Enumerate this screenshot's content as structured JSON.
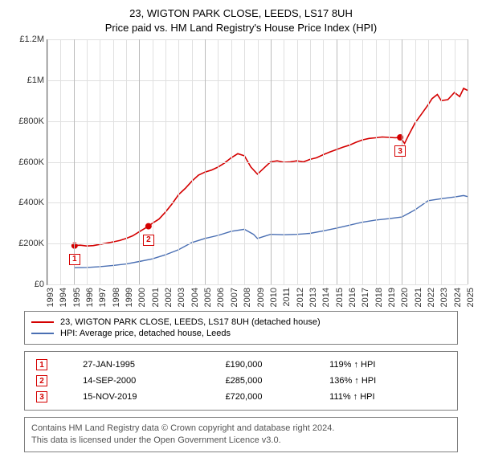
{
  "title": {
    "line1": "23, WIGTON PARK CLOSE, LEEDS, LS17 8UH",
    "line2": "Price paid vs. HM Land Registry's House Price Index (HPI)",
    "fontsize": 13
  },
  "chart": {
    "type": "line",
    "background_color": "#ffffff",
    "grid_color": "#e0e0e0",
    "grid_major_color": "#bbbbbb",
    "x": {
      "min": 1993,
      "max": 2025,
      "tick_step": 1,
      "major_step": 5,
      "labels": [
        "1993",
        "1994",
        "1995",
        "1996",
        "1997",
        "1998",
        "1999",
        "2000",
        "2001",
        "2002",
        "2003",
        "2004",
        "2005",
        "2006",
        "2007",
        "2008",
        "2009",
        "2010",
        "2011",
        "2012",
        "2013",
        "2014",
        "2015",
        "2016",
        "2017",
        "2018",
        "2019",
        "2020",
        "2021",
        "2022",
        "2023",
        "2024",
        "2025"
      ],
      "label_fontsize": 11
    },
    "y": {
      "min": 0,
      "max": 1200000,
      "tick_step": 200000,
      "labels": [
        "£0",
        "£200K",
        "£400K",
        "£600K",
        "£800K",
        "£1M",
        "£1.2M"
      ],
      "label_fontsize": 11
    },
    "series": [
      {
        "name": "23, WIGTON PARK CLOSE, LEEDS, LS17 8UH (detached house)",
        "color": "#d40000",
        "width": 1.6,
        "data": [
          [
            1995.07,
            190000
          ],
          [
            1995.5,
            192000
          ],
          [
            1996,
            188000
          ],
          [
            1996.5,
            190000
          ],
          [
            1997,
            196000
          ],
          [
            1997.5,
            202000
          ],
          [
            1998,
            208000
          ],
          [
            1998.5,
            215000
          ],
          [
            1999,
            225000
          ],
          [
            1999.5,
            238000
          ],
          [
            2000,
            258000
          ],
          [
            2000.7,
            285000
          ],
          [
            2001,
            300000
          ],
          [
            2001.5,
            320000
          ],
          [
            2002,
            355000
          ],
          [
            2002.5,
            395000
          ],
          [
            2003,
            440000
          ],
          [
            2003.5,
            470000
          ],
          [
            2004,
            505000
          ],
          [
            2004.5,
            535000
          ],
          [
            2005,
            550000
          ],
          [
            2005.5,
            560000
          ],
          [
            2006,
            575000
          ],
          [
            2006.5,
            595000
          ],
          [
            2007,
            620000
          ],
          [
            2007.5,
            640000
          ],
          [
            2008,
            630000
          ],
          [
            2008.5,
            575000
          ],
          [
            2009,
            540000
          ],
          [
            2009.5,
            570000
          ],
          [
            2010,
            600000
          ],
          [
            2010.5,
            605000
          ],
          [
            2011,
            598000
          ],
          [
            2011.5,
            600000
          ],
          [
            2012,
            605000
          ],
          [
            2012.5,
            600000
          ],
          [
            2013,
            612000
          ],
          [
            2013.5,
            620000
          ],
          [
            2014,
            635000
          ],
          [
            2014.5,
            648000
          ],
          [
            2015,
            660000
          ],
          [
            2015.5,
            672000
          ],
          [
            2016,
            682000
          ],
          [
            2016.5,
            696000
          ],
          [
            2017,
            708000
          ],
          [
            2017.5,
            715000
          ],
          [
            2018,
            718000
          ],
          [
            2018.5,
            722000
          ],
          [
            2019,
            720000
          ],
          [
            2019.5,
            718000
          ],
          [
            2019.87,
            720000
          ],
          [
            2020.2,
            690000
          ],
          [
            2020.5,
            730000
          ],
          [
            2021,
            790000
          ],
          [
            2021.5,
            835000
          ],
          [
            2022,
            880000
          ],
          [
            2022.3,
            910000
          ],
          [
            2022.7,
            930000
          ],
          [
            2023,
            900000
          ],
          [
            2023.5,
            905000
          ],
          [
            2024,
            940000
          ],
          [
            2024.4,
            920000
          ],
          [
            2024.7,
            960000
          ],
          [
            2025,
            950000
          ]
        ]
      },
      {
        "name": "HPI: Average price, detached house, Leeds",
        "color": "#4a6fb3",
        "width": 1.4,
        "data": [
          [
            1995.07,
            82000
          ],
          [
            1996,
            83000
          ],
          [
            1997,
            87000
          ],
          [
            1998,
            93000
          ],
          [
            1999,
            100000
          ],
          [
            2000,
            112000
          ],
          [
            2001,
            125000
          ],
          [
            2002,
            145000
          ],
          [
            2003,
            170000
          ],
          [
            2004,
            205000
          ],
          [
            2005,
            225000
          ],
          [
            2006,
            240000
          ],
          [
            2007,
            260000
          ],
          [
            2008,
            270000
          ],
          [
            2008.7,
            245000
          ],
          [
            2009,
            225000
          ],
          [
            2010,
            245000
          ],
          [
            2011,
            243000
          ],
          [
            2012,
            245000
          ],
          [
            2013,
            250000
          ],
          [
            2014,
            262000
          ],
          [
            2015,
            275000
          ],
          [
            2016,
            290000
          ],
          [
            2017,
            305000
          ],
          [
            2018,
            315000
          ],
          [
            2019,
            322000
          ],
          [
            2020,
            330000
          ],
          [
            2021,
            365000
          ],
          [
            2022,
            410000
          ],
          [
            2023,
            420000
          ],
          [
            2024,
            428000
          ],
          [
            2024.7,
            435000
          ],
          [
            2025,
            430000
          ]
        ]
      }
    ],
    "sale_markers": [
      {
        "n": "1",
        "x": 1995.07,
        "y": 190000
      },
      {
        "n": "2",
        "x": 2000.7,
        "y": 285000
      },
      {
        "n": "3",
        "x": 2019.87,
        "y": 720000
      }
    ]
  },
  "legend": {
    "items": [
      {
        "color": "#d40000",
        "label": "23, WIGTON PARK CLOSE, LEEDS, LS17 8UH (detached house)"
      },
      {
        "color": "#4a6fb3",
        "label": "HPI: Average price, detached house, Leeds"
      }
    ]
  },
  "sales": [
    {
      "n": "1",
      "date": "27-JAN-1995",
      "price": "£190,000",
      "pct": "119% ↑ HPI"
    },
    {
      "n": "2",
      "date": "14-SEP-2000",
      "price": "£285,000",
      "pct": "136% ↑ HPI"
    },
    {
      "n": "3",
      "date": "15-NOV-2019",
      "price": "£720,000",
      "pct": "111% ↑ HPI"
    }
  ],
  "footer": {
    "line1": "Contains HM Land Registry data © Crown copyright and database right 2024.",
    "line2": "This data is licensed under the Open Government Licence v3.0."
  }
}
